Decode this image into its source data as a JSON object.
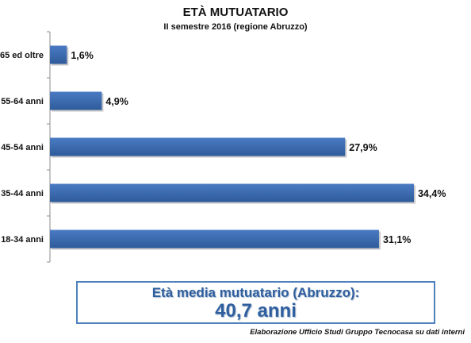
{
  "chart_data": {
    "type": "bar",
    "orientation": "horizontal",
    "title": "ETÀ MUTUATARIO",
    "subtitle": "II semestre 2016 (regione Abruzzo)",
    "categories": [
      "65 ed oltre",
      "55-64 anni",
      "45-54 anni",
      "35-44 anni",
      "18-34 anni"
    ],
    "values": [
      1.6,
      4.9,
      27.9,
      34.4,
      31.1
    ],
    "data_labels": [
      "1,6%",
      "4,9%",
      "27,9%",
      "34,4%",
      "31,1%"
    ],
    "xlim": [
      0,
      35
    ],
    "grid": false,
    "legend": "none"
  },
  "summary": {
    "label": "Età media mutuatario (Abruzzo):",
    "value": "40,7 anni"
  },
  "source": "Elaborazione Ufficio Studi Gruppo Tecnocasa su dati interni",
  "colors": {
    "bar": "#4a7bc3",
    "bar_dark": "#2e5b9a",
    "box_border": "#4f81bd",
    "summary_text": "#2f5f9e"
  }
}
